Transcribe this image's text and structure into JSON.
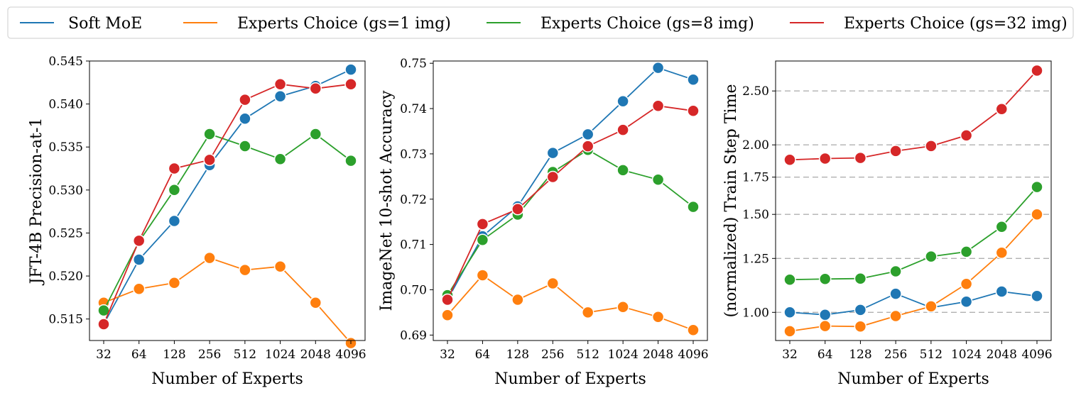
{
  "chart_data": [
    {
      "type": "line",
      "title": "",
      "xlabel": "Number of Experts",
      "ylabel": "JFT-4B Precision-at-1",
      "categories": [
        "32",
        "64",
        "128",
        "256",
        "512",
        "1024",
        "2048",
        "4096"
      ],
      "ylim": [
        0.5125,
        0.545
      ],
      "yticks": [
        0.515,
        0.52,
        0.525,
        0.53,
        0.535,
        0.54,
        0.545
      ],
      "ytick_labels": [
        "0.515",
        "0.520",
        "0.525",
        "0.530",
        "0.535",
        "0.540",
        "0.545"
      ],
      "grid": false,
      "series": [
        {
          "name": "Soft MoE",
          "color": "#1f77b4",
          "values": [
            0.5144,
            0.5219,
            0.5264,
            0.5329,
            0.5383,
            0.5409,
            0.5421,
            0.544
          ]
        },
        {
          "name": "Experts Choice (gs=1 img)",
          "color": "#ff7f0e",
          "values": [
            0.5169,
            0.5185,
            0.5192,
            0.5221,
            0.5207,
            0.5211,
            0.5169,
            0.5122
          ]
        },
        {
          "name": "Experts Choice (gs=8 img)",
          "color": "#2ca02c",
          "values": [
            0.516,
            0.524,
            0.53,
            0.5365,
            0.5351,
            0.5336,
            0.5365,
            0.5334
          ]
        },
        {
          "name": "Experts Choice (gs=32 img)",
          "color": "#d62728",
          "values": [
            0.5144,
            0.5241,
            0.5325,
            0.5335,
            0.5405,
            0.5423,
            0.5418,
            0.5423
          ]
        }
      ]
    },
    {
      "type": "line",
      "title": "",
      "xlabel": "Number of Experts",
      "ylabel": "ImageNet 10-shot Accuracy",
      "categories": [
        "32",
        "64",
        "128",
        "256",
        "512",
        "1024",
        "2048",
        "4096"
      ],
      "ylim": [
        0.6888,
        0.7505
      ],
      "yticks": [
        0.69,
        0.7,
        0.71,
        0.72,
        0.73,
        0.74,
        0.75
      ],
      "ytick_labels": [
        "0.69",
        "0.70",
        "0.71",
        "0.72",
        "0.73",
        "0.74",
        "0.75"
      ],
      "grid": false,
      "series": [
        {
          "name": "Soft MoE",
          "color": "#1f77b4",
          "values": [
            0.6978,
            0.7118,
            0.7184,
            0.7302,
            0.7343,
            0.7416,
            0.749,
            0.7464
          ]
        },
        {
          "name": "Experts Choice (gs=1 img)",
          "color": "#ff7f0e",
          "values": [
            0.6944,
            0.7032,
            0.6978,
            0.7014,
            0.695,
            0.6962,
            0.694,
            0.6911
          ]
        },
        {
          "name": "Experts Choice (gs=8 img)",
          "color": "#2ca02c",
          "values": [
            0.6988,
            0.711,
            0.7166,
            0.726,
            0.7309,
            0.7264,
            0.7243,
            0.7183
          ]
        },
        {
          "name": "Experts Choice (gs=32 img)",
          "color": "#d62728",
          "values": [
            0.6978,
            0.7145,
            0.7178,
            0.7249,
            0.7317,
            0.7353,
            0.7406,
            0.7395
          ]
        }
      ]
    },
    {
      "type": "line",
      "title": "",
      "xlabel": "Number of Experts",
      "ylabel": "(normalized) Train Step Time",
      "yscale": "log",
      "categories": [
        "32",
        "64",
        "128",
        "256",
        "512",
        "1024",
        "2048",
        "4096"
      ],
      "ylim": [
        0.89,
        2.83
      ],
      "yticks": [
        1.0,
        1.25,
        1.5,
        1.75,
        2.0,
        2.5
      ],
      "ytick_labels": [
        "1.00",
        "1.25",
        "1.50",
        "1.75",
        "2.00",
        "2.50"
      ],
      "grid": true,
      "series": [
        {
          "name": "Soft MoE",
          "color": "#1f77b4",
          "values": [
            1.0,
            0.99,
            1.01,
            1.08,
            1.02,
            1.045,
            1.09,
            1.07
          ]
        },
        {
          "name": "Experts Choice (gs=1 img)",
          "color": "#ff7f0e",
          "values": [
            0.925,
            0.945,
            0.943,
            0.985,
            1.025,
            1.125,
            1.28,
            1.5
          ]
        },
        {
          "name": "Experts Choice (gs=8 img)",
          "color": "#2ca02c",
          "values": [
            1.145,
            1.148,
            1.15,
            1.185,
            1.26,
            1.285,
            1.425,
            1.68
          ]
        },
        {
          "name": "Experts Choice (gs=32 img)",
          "color": "#d62728",
          "values": [
            1.88,
            1.89,
            1.895,
            1.95,
            1.99,
            2.08,
            2.32,
            2.72
          ]
        }
      ]
    }
  ],
  "legend": {
    "placement": "top",
    "entries": [
      {
        "label": "Soft MoE",
        "color": "#1f77b4"
      },
      {
        "label": "Experts Choice (gs=1 img)",
        "color": "#ff7f0e"
      },
      {
        "label": "Experts Choice (gs=8 img)",
        "color": "#2ca02c"
      },
      {
        "label": "Experts Choice (gs=32 img)",
        "color": "#d62728"
      }
    ]
  }
}
